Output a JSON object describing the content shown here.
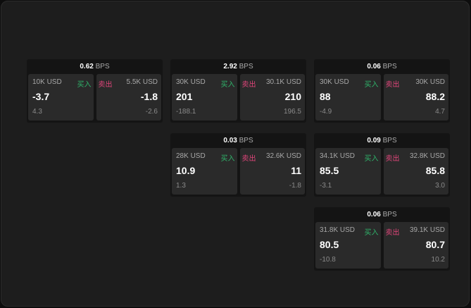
{
  "unit": "BPS",
  "buy_label": "买入",
  "sell_label": "卖出",
  "colors": {
    "buy": "#2fb36a",
    "sell": "#e0457a"
  },
  "cards": [
    {
      "spread": "0.62",
      "buy": {
        "size": "10K USD",
        "price": "-3.7",
        "change": "4.3"
      },
      "sell": {
        "size": "5.5K USD",
        "price": "-1.8",
        "change": "-2.6"
      }
    },
    {
      "spread": "2.92",
      "buy": {
        "size": "30K USD",
        "price": "201",
        "change": "-188.1"
      },
      "sell": {
        "size": "30.1K USD",
        "price": "210",
        "change": "196.5"
      }
    },
    {
      "spread": "0.06",
      "buy": {
        "size": "30K USD",
        "price": "88",
        "change": "-4.9"
      },
      "sell": {
        "size": "30K USD",
        "price": "88.2",
        "change": "4.7"
      }
    },
    {
      "spread": "0.03",
      "buy": {
        "size": "28K USD",
        "price": "10.9",
        "change": "1.3"
      },
      "sell": {
        "size": "32.6K USD",
        "price": "11",
        "change": "-1.8"
      }
    },
    {
      "spread": "0.09",
      "buy": {
        "size": "34.1K USD",
        "price": "85.5",
        "change": "-3.1"
      },
      "sell": {
        "size": "32.8K USD",
        "price": "85.8",
        "change": "3.0"
      }
    },
    {
      "spread": "0.06",
      "buy": {
        "size": "31.8K USD",
        "price": "80.5",
        "change": "-10.8"
      },
      "sell": {
        "size": "39.1K USD",
        "price": "80.7",
        "change": "10.2"
      }
    }
  ]
}
